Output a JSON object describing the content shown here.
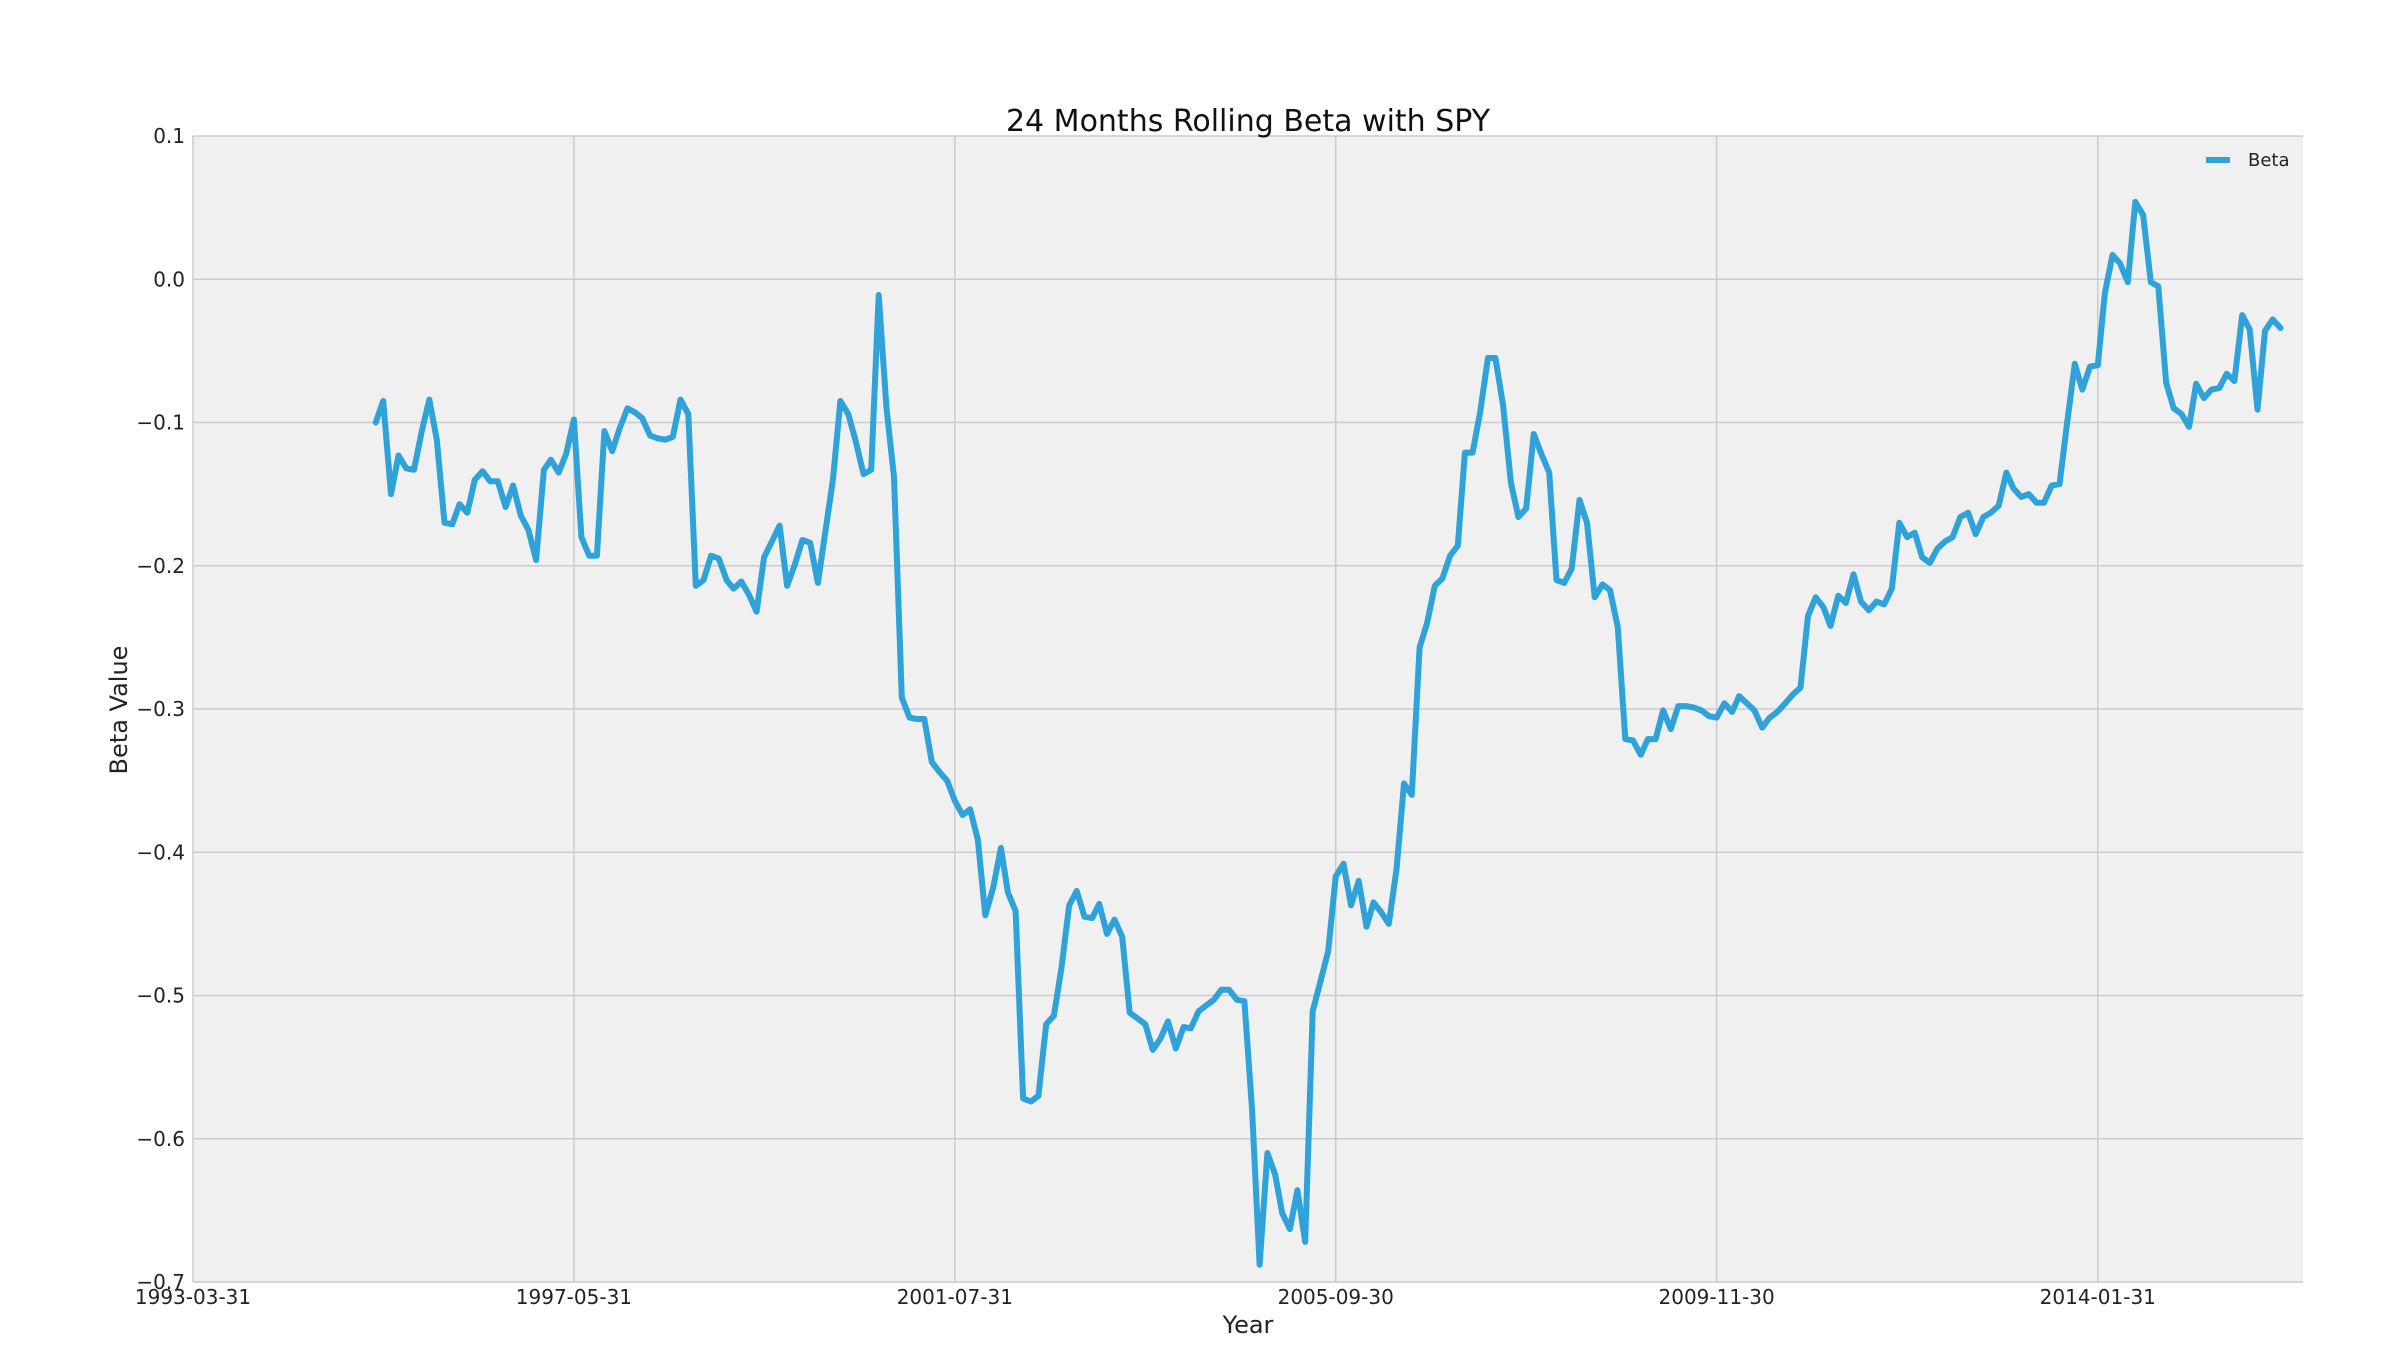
{
  "colors": {
    "background": "#f0f0f0",
    "grid": "#cbcbcb",
    "series": "#30a2da"
  },
  "chart_data": {
    "type": "line",
    "title": "24 Months Rolling Beta with SPY",
    "xlabel": "Year",
    "ylabel": "Beta Value",
    "grid": true,
    "legend_position": "top-right",
    "xlim": [
      "1993-03-31",
      "2016-04-30"
    ],
    "ylim": [
      -0.7,
      0.1
    ],
    "x_ticks": [
      "1993-03-31",
      "1997-05-31",
      "2001-07-31",
      "2005-09-30",
      "2009-11-30",
      "2014-01-31"
    ],
    "y_ticks": [
      0.1,
      0.0,
      -0.1,
      -0.2,
      -0.3,
      -0.4,
      -0.5,
      -0.6,
      -0.7
    ],
    "y_tick_labels": [
      "0.1",
      "0.0",
      "−0.1",
      "−0.2",
      "−0.3",
      "−0.4",
      "−0.5",
      "−0.6",
      "−0.7"
    ],
    "series": [
      {
        "name": "Beta",
        "x_start": "1995-03-31",
        "x_end": "2016-04-30",
        "frequency": "monthly",
        "values": [
          -0.1,
          -0.085,
          -0.15,
          -0.123,
          -0.132,
          -0.133,
          -0.107,
          -0.084,
          -0.112,
          -0.17,
          -0.171,
          -0.157,
          -0.163,
          -0.14,
          -0.134,
          -0.141,
          -0.141,
          -0.159,
          -0.144,
          -0.165,
          -0.175,
          -0.196,
          -0.133,
          -0.126,
          -0.135,
          -0.122,
          -0.098,
          -0.18,
          -0.193,
          -0.193,
          -0.106,
          -0.12,
          -0.104,
          -0.09,
          -0.093,
          -0.097,
          -0.109,
          -0.111,
          -0.112,
          -0.11,
          -0.084,
          -0.094,
          -0.214,
          -0.21,
          -0.193,
          -0.195,
          -0.21,
          -0.216,
          -0.211,
          -0.22,
          -0.232,
          -0.194,
          -0.183,
          -0.172,
          -0.214,
          -0.199,
          -0.182,
          -0.184,
          -0.212,
          -0.177,
          -0.14,
          -0.085,
          -0.094,
          -0.113,
          -0.136,
          -0.133,
          -0.011,
          -0.09,
          -0.138,
          -0.292,
          -0.306,
          -0.307,
          -0.307,
          -0.337,
          -0.344,
          -0.35,
          -0.364,
          -0.374,
          -0.37,
          -0.391,
          -0.444,
          -0.425,
          -0.397,
          -0.428,
          -0.441,
          -0.572,
          -0.574,
          -0.57,
          -0.52,
          -0.514,
          -0.481,
          -0.437,
          -0.427,
          -0.445,
          -0.446,
          -0.436,
          -0.457,
          -0.447,
          -0.459,
          -0.512,
          -0.516,
          -0.52,
          -0.538,
          -0.53,
          -0.518,
          -0.537,
          -0.522,
          -0.523,
          -0.511,
          -0.507,
          -0.503,
          -0.496,
          -0.496,
          -0.503,
          -0.504,
          -0.58,
          -0.688,
          -0.61,
          -0.625,
          -0.652,
          -0.663,
          -0.636,
          -0.672,
          -0.511,
          -0.49,
          -0.469,
          -0.417,
          -0.408,
          -0.437,
          -0.42,
          -0.452,
          -0.435,
          -0.442,
          -0.45,
          -0.412,
          -0.352,
          -0.36,
          -0.257,
          -0.24,
          -0.214,
          -0.209,
          -0.193,
          -0.186,
          -0.121,
          -0.121,
          -0.093,
          -0.055,
          -0.055,
          -0.088,
          -0.142,
          -0.166,
          -0.16,
          -0.108,
          -0.122,
          -0.135,
          -0.21,
          -0.212,
          -0.202,
          -0.154,
          -0.17,
          -0.222,
          -0.213,
          -0.217,
          -0.243,
          -0.321,
          -0.322,
          -0.332,
          -0.321,
          -0.321,
          -0.301,
          -0.314,
          -0.298,
          -0.298,
          -0.299,
          -0.301,
          -0.305,
          -0.306,
          -0.296,
          -0.302,
          -0.291,
          -0.296,
          -0.301,
          -0.313,
          -0.306,
          -0.302,
          -0.296,
          -0.29,
          -0.285,
          -0.235,
          -0.222,
          -0.229,
          -0.242,
          -0.221,
          -0.226,
          -0.206,
          -0.225,
          -0.231,
          -0.225,
          -0.227,
          -0.216,
          -0.17,
          -0.18,
          -0.177,
          -0.194,
          -0.198,
          -0.188,
          -0.183,
          -0.18,
          -0.166,
          -0.163,
          -0.178,
          -0.166,
          -0.163,
          -0.158,
          -0.135,
          -0.146,
          -0.152,
          -0.15,
          -0.156,
          -0.156,
          -0.144,
          -0.143,
          -0.101,
          -0.059,
          -0.077,
          -0.061,
          -0.06,
          -0.01,
          0.017,
          0.011,
          -0.002,
          0.054,
          0.045,
          -0.002,
          -0.005,
          -0.072,
          -0.09,
          -0.094,
          -0.103,
          -0.073,
          -0.083,
          -0.077,
          -0.076,
          -0.066,
          -0.071,
          -0.025,
          -0.035,
          -0.091,
          -0.036,
          -0.028,
          -0.034
        ]
      }
    ]
  }
}
